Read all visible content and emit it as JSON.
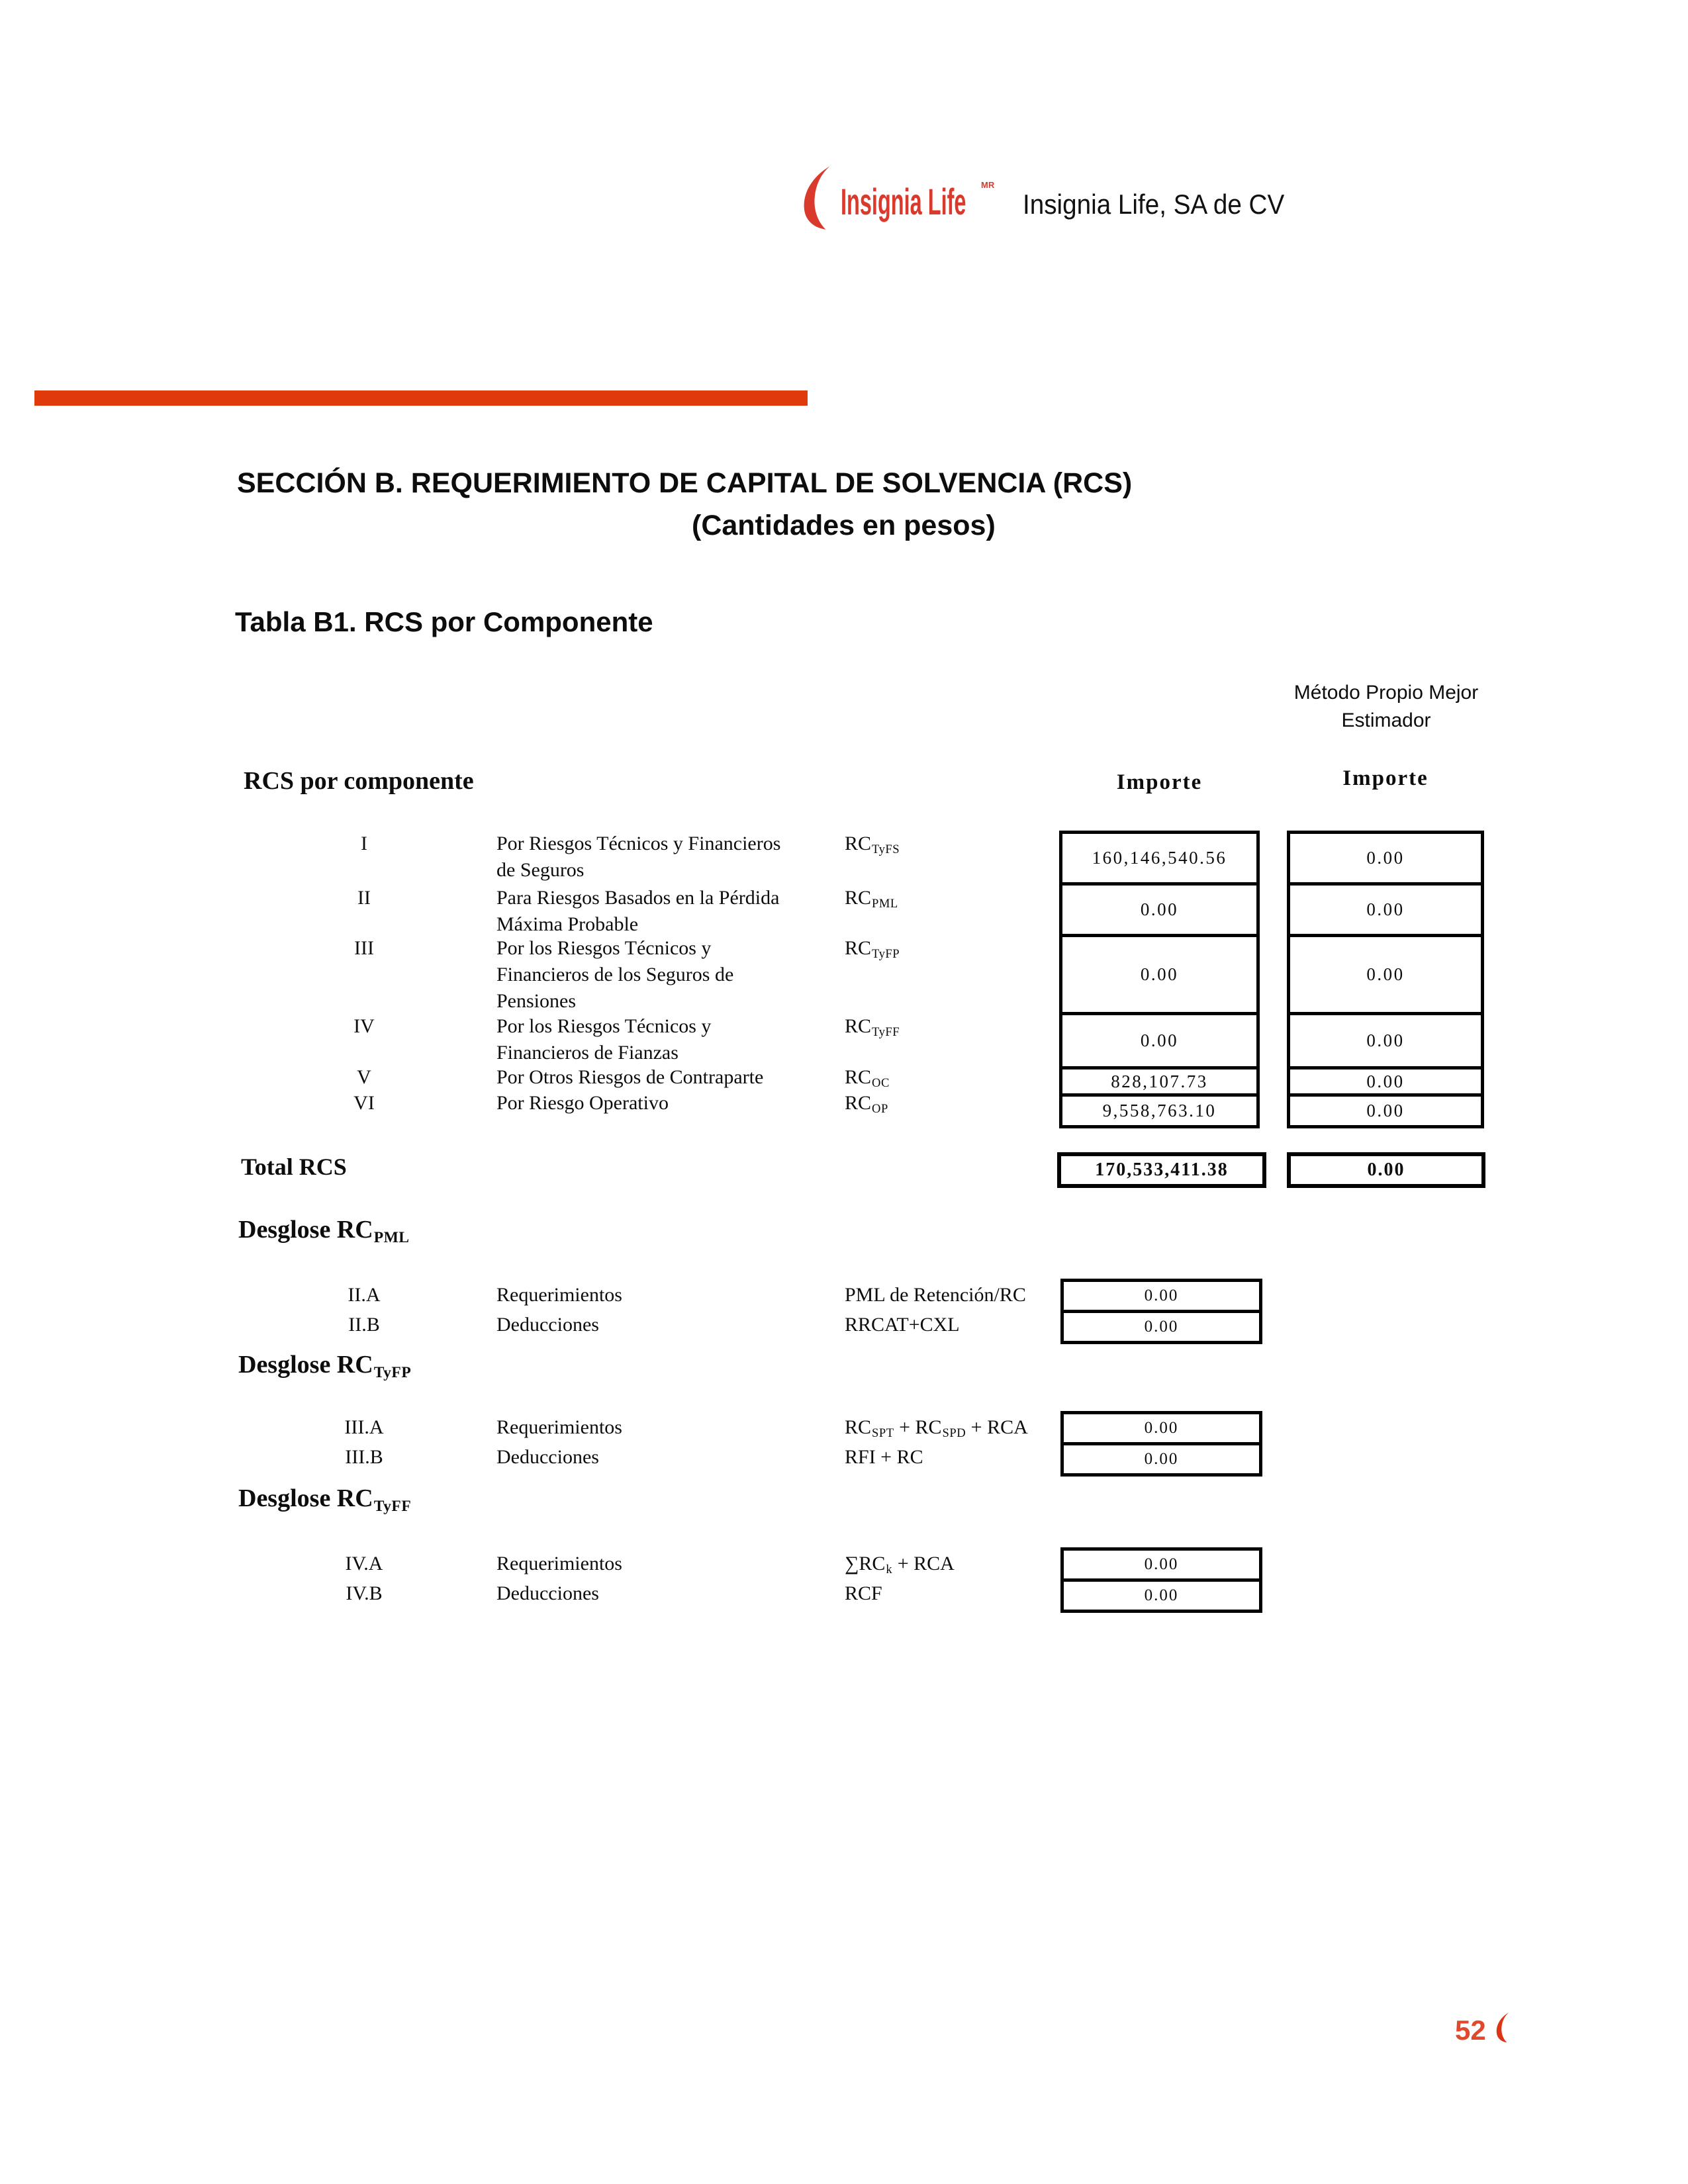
{
  "header": {
    "brand": "Insignia Life",
    "brand_mark": "MR",
    "company": "Insignia Life, SA de CV"
  },
  "section": {
    "title": "SECCIÓN B. REQUERIMIENTO DE CAPITAL DE SOLVENCIA (RCS)",
    "subtitle": "(Cantidades en pesos)"
  },
  "table": {
    "title": "Tabla B1. RCS por Componente",
    "left_header": "RCS por componente",
    "method_header_line1": "Método Propio Mejor",
    "method_header_line2": "Estimador",
    "importe_header": "Importe",
    "importe_mp_header": "Importe",
    "rows": [
      {
        "num": "I",
        "desc_lines": [
          "Por Riesgos Técnicos y Financieros",
          "de Seguros"
        ],
        "formula": [
          {
            "t": "RC"
          },
          {
            "s": "TyFS"
          }
        ],
        "importe": "160,146,540.56",
        "importe_mp": "0.00"
      },
      {
        "num": "II",
        "desc_lines": [
          "Para Riesgos Basados en la Pérdida",
          "Máxima Probable"
        ],
        "formula": [
          {
            "t": "RC"
          },
          {
            "s": "PML"
          }
        ],
        "importe": "0.00",
        "importe_mp": "0.00"
      },
      {
        "num": "III",
        "desc_lines": [
          "Por los Riesgos Técnicos y",
          "Financieros de los Seguros de",
          "Pensiones"
        ],
        "formula": [
          {
            "t": "RC"
          },
          {
            "s": "TyFP"
          }
        ],
        "importe": "0.00",
        "importe_mp": "0.00"
      },
      {
        "num": "IV",
        "desc_lines": [
          "Por los Riesgos Técnicos y",
          "Financieros de Fianzas"
        ],
        "formula": [
          {
            "t": "RC"
          },
          {
            "s": "TyFF"
          }
        ],
        "importe": "0.00",
        "importe_mp": "0.00"
      },
      {
        "num": "V",
        "desc_lines": [
          "Por Otros Riesgos de Contraparte"
        ],
        "formula": [
          {
            "t": "RC"
          },
          {
            "s": "OC"
          }
        ],
        "importe": "828,107.73",
        "importe_mp": "0.00"
      },
      {
        "num": "VI",
        "desc_lines": [
          "Por Riesgo Operativo"
        ],
        "formula": [
          {
            "t": "RC"
          },
          {
            "s": "OP"
          }
        ],
        "importe": "9,558,763.10",
        "importe_mp": "0.00"
      }
    ],
    "total": {
      "label": "Total RCS",
      "importe": "170,533,411.38",
      "importe_mp": "0.00"
    }
  },
  "breakdowns": [
    {
      "title": [
        {
          "t": "Desglose RC"
        },
        {
          "s": "PML"
        }
      ],
      "rows": [
        {
          "num": "II.A",
          "label": "Requerimientos",
          "formula": [
            {
              "t": "PML de Retención/RC"
            }
          ],
          "value": "0.00"
        },
        {
          "num": "II.B",
          "label": "Deducciones",
          "formula": [
            {
              "t": "RRCAT+CXL"
            }
          ],
          "value": "0.00"
        }
      ]
    },
    {
      "title": [
        {
          "t": "Desglose RC"
        },
        {
          "s": "TyFP"
        }
      ],
      "rows": [
        {
          "num": "III.A",
          "label": "Requerimientos",
          "formula": [
            {
              "t": "RC"
            },
            {
              "s": "SPT"
            },
            {
              "t": " + RC"
            },
            {
              "s": "SPD"
            },
            {
              "t": " + RCA"
            }
          ],
          "value": "0.00"
        },
        {
          "num": "III.B",
          "label": "Deducciones",
          "formula": [
            {
              "t": "RFI + RC"
            }
          ],
          "value": "0.00"
        }
      ]
    },
    {
      "title": [
        {
          "t": "Desglose RC"
        },
        {
          "s": "TyFF"
        }
      ],
      "rows": [
        {
          "num": "IV.A",
          "label": "Requerimientos",
          "formula": [
            {
              "t": "∑RC"
            },
            {
              "s": "k"
            },
            {
              "t": " + RCA"
            }
          ],
          "value": "0.00"
        },
        {
          "num": "IV.B",
          "label": "Deducciones",
          "formula": [
            {
              "t": "RCF"
            }
          ],
          "value": "0.00"
        }
      ]
    }
  ],
  "footer": {
    "page": "52"
  },
  "colors": {
    "accent_bar": "#E0390B",
    "brand_red": "#D93A2B",
    "footer_red": "#E2492B",
    "crescent_red": "#DC3513"
  }
}
